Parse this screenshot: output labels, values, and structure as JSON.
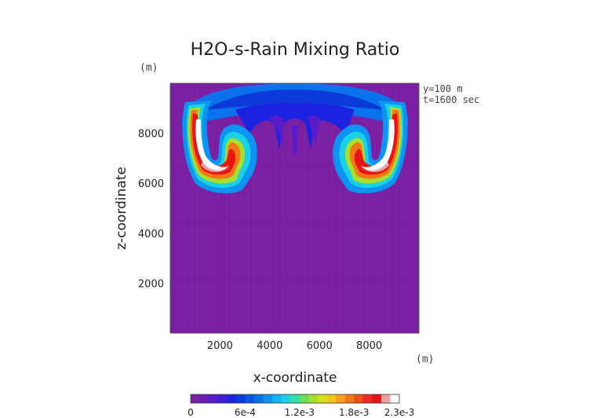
{
  "chart_data": {
    "type": "heatmap",
    "title": "H2O-s-Rain Mixing Ratio",
    "xlabel": "x-coordinate",
    "ylabel": "z-coordinate",
    "x_unit": "(m)",
    "y_unit": "(m)",
    "xlim": [
      0,
      10000
    ],
    "ylim": [
      0,
      10000
    ],
    "x_ticks": [
      2000,
      4000,
      6000,
      8000
    ],
    "y_ticks": [
      2000,
      4000,
      6000,
      8000
    ],
    "annotations": [
      "y=100 m",
      "t=1600 sec"
    ],
    "colorbar": {
      "min": 0,
      "max": 0.0023,
      "tick_labels": [
        "0",
        "6e-4",
        "1.2e-3",
        "1.8e-3",
        "2.3e-3"
      ],
      "tick_values": [
        0,
        0.0006,
        0.0012,
        0.0018,
        0.0023
      ],
      "colors": [
        "#7a1fa2",
        "#6a1ab8",
        "#5a1ccb",
        "#3a1ed6",
        "#1c22e0",
        "#0b3ad8",
        "#0a55e0",
        "#0a72ea",
        "#0d93f2",
        "#10b4f2",
        "#19d0e6",
        "#2ee0b0",
        "#6ae05a",
        "#a6e02a",
        "#d6e01a",
        "#f0c81a",
        "#f5a01a",
        "#f57818",
        "#f05018",
        "#f02828",
        "#e81414",
        "#f0a0a0",
        "#ffffff"
      ]
    },
    "series": [
      {
        "values": [
          {
            "x": 1700,
            "z": 7800,
            "level": "max"
          },
          {
            "x": 3000,
            "z": 7000,
            "level": "high"
          },
          {
            "x": 7300,
            "z": 7000,
            "level": "high"
          },
          {
            "x": 8500,
            "z": 7800,
            "level": "max"
          }
        ]
      }
    ]
  }
}
